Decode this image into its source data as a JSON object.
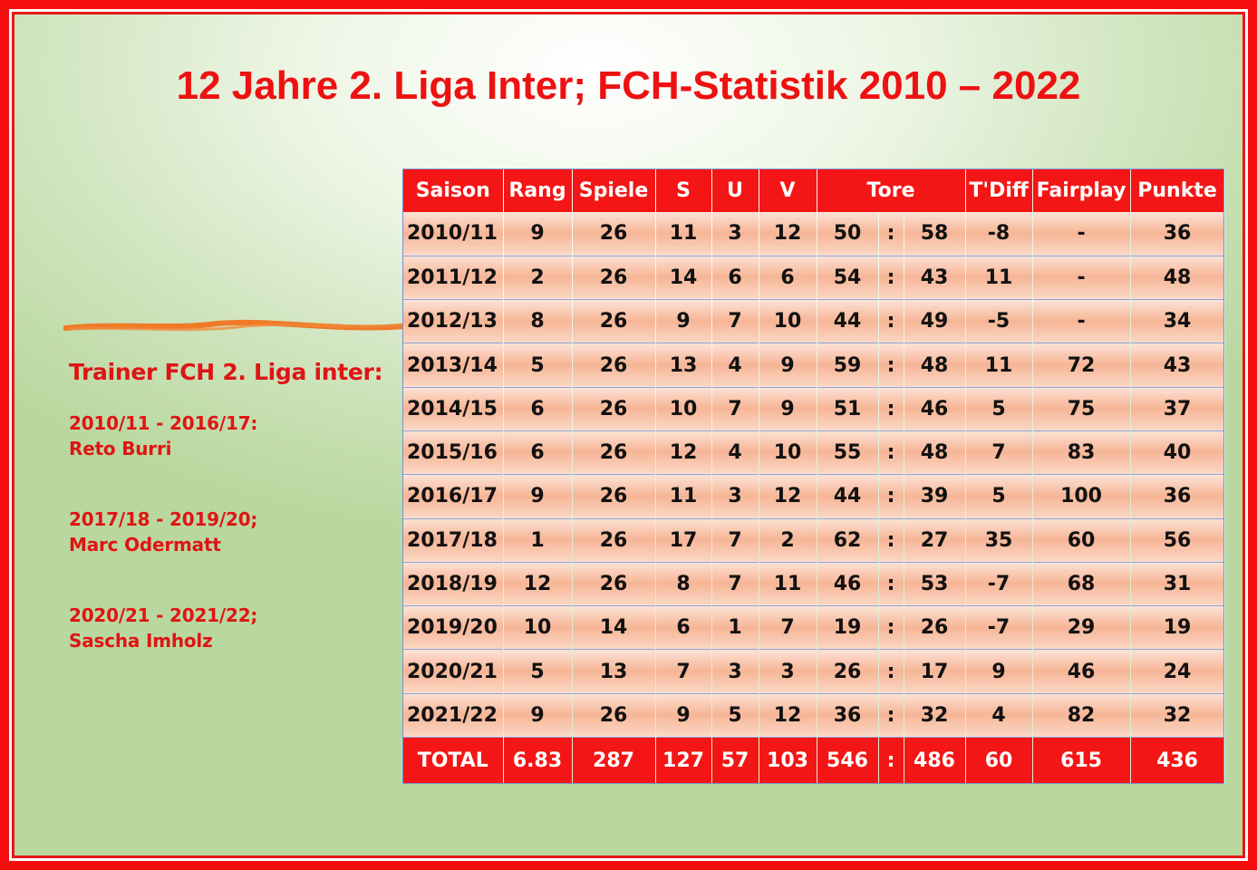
{
  "title": "12 Jahre 2. Liga Inter; FCH-Statistik 2010 – 2022",
  "trainers": {
    "heading": "Trainer FCH 2. Liga inter:",
    "entries": [
      {
        "period": "2010/11 - 2016/17:",
        "name": "Reto Burri"
      },
      {
        "period": "2017/18 - 2019/20;",
        "name": "Marc Odermatt"
      },
      {
        "period": "2020/21 - 2021/22;",
        "name": "Sascha Imholz"
      }
    ]
  },
  "colors": {
    "accent": "#f41616",
    "text_red": "#e01414",
    "swoosh": "#f07a28"
  },
  "table": {
    "headers": {
      "saison": "Saison",
      "rang": "Rang",
      "spiele": "Spiele",
      "s": "S",
      "u": "U",
      "v": "V",
      "tore": "Tore",
      "tdiff": "T'Diff",
      "fairplay": "Fairplay",
      "punkte": "Punkte"
    },
    "rows": [
      [
        "2010/11",
        "9",
        "26",
        "11",
        "3",
        "12",
        "50",
        ":",
        "58",
        "-8",
        "-",
        "36"
      ],
      [
        "2011/12",
        "2",
        "26",
        "14",
        "6",
        "6",
        "54",
        ":",
        "43",
        "11",
        "-",
        "48"
      ],
      [
        "2012/13",
        "8",
        "26",
        "9",
        "7",
        "10",
        "44",
        ":",
        "49",
        "-5",
        "-",
        "34"
      ],
      [
        "2013/14",
        "5",
        "26",
        "13",
        "4",
        "9",
        "59",
        ":",
        "48",
        "11",
        "72",
        "43"
      ],
      [
        "2014/15",
        "6",
        "26",
        "10",
        "7",
        "9",
        "51",
        ":",
        "46",
        "5",
        "75",
        "37"
      ],
      [
        "2015/16",
        "6",
        "26",
        "12",
        "4",
        "10",
        "55",
        ":",
        "48",
        "7",
        "83",
        "40"
      ],
      [
        "2016/17",
        "9",
        "26",
        "11",
        "3",
        "12",
        "44",
        ":",
        "39",
        "5",
        "100",
        "36"
      ],
      [
        "2017/18",
        "1",
        "26",
        "17",
        "7",
        "2",
        "62",
        ":",
        "27",
        "35",
        "60",
        "56"
      ],
      [
        "2018/19",
        "12",
        "26",
        "8",
        "7",
        "11",
        "46",
        ":",
        "53",
        "-7",
        "68",
        "31"
      ],
      [
        "2019/20",
        "10",
        "14",
        "6",
        "1",
        "7",
        "19",
        ":",
        "26",
        "-7",
        "29",
        "19"
      ],
      [
        "2020/21",
        "5",
        "13",
        "7",
        "3",
        "3",
        "26",
        ":",
        "17",
        "9",
        "46",
        "24"
      ],
      [
        "2021/22",
        "9",
        "26",
        "9",
        "5",
        "12",
        "36",
        ":",
        "32",
        "4",
        "82",
        "32"
      ]
    ],
    "total": [
      "TOTAL",
      "6.83",
      "287",
      "127",
      "57",
      "103",
      "546",
      ":",
      "486",
      "60",
      "615",
      "436"
    ]
  }
}
